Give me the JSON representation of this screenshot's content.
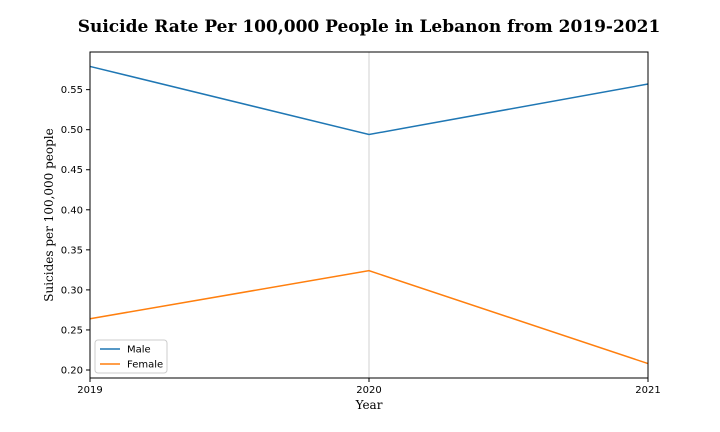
{
  "chart_data": {
    "type": "line",
    "title": "Suicide Rate Per 100,000 People in Lebanon from 2019-2021",
    "xlabel": "Year",
    "ylabel": "Suicides per 100,000 people",
    "x": [
      "2019",
      "2020",
      "2021"
    ],
    "xlim": [
      2019,
      2021
    ],
    "ylim": [
      0.19,
      0.597
    ],
    "yticks": [
      "0.20",
      "0.25",
      "0.30",
      "0.35",
      "0.40",
      "0.45",
      "0.50",
      "0.55"
    ],
    "vertical_guide_at": "2020",
    "grid": false,
    "legend_position": "lower-left",
    "series": [
      {
        "name": "Male",
        "color": "#1f77b4",
        "values": [
          0.579,
          0.494,
          0.557
        ]
      },
      {
        "name": "Female",
        "color": "#ff7f0e",
        "values": [
          0.264,
          0.324,
          0.208
        ]
      }
    ]
  }
}
